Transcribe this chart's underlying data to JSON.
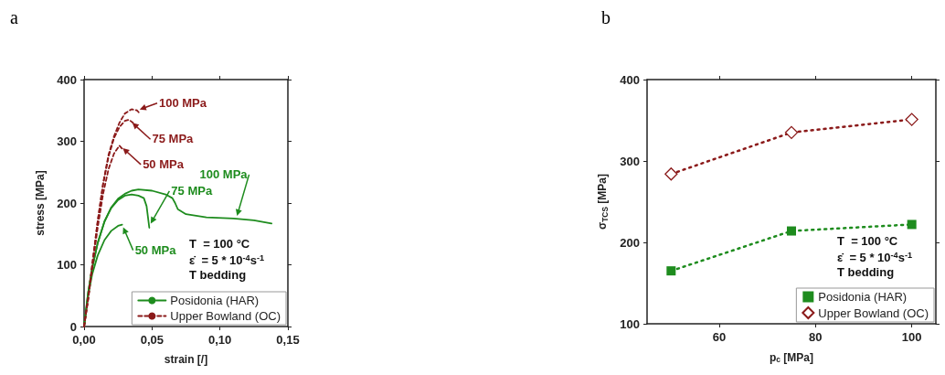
{
  "chart_data": [
    {
      "type": "line",
      "title": "a",
      "xlabel": "strain [/]",
      "ylabel": "stress [MPa]",
      "xlim": [
        0,
        0.15
      ],
      "xticks": [
        {
          "value": 0,
          "label": "0,00"
        },
        {
          "value": 0.05,
          "label": "0,05"
        },
        {
          "value": 0.1,
          "label": "0,10"
        },
        {
          "value": 0.15,
          "label": "0,15"
        }
      ],
      "ylim": [
        0,
        400
      ],
      "yticks": [
        0,
        100,
        200,
        300,
        400
      ],
      "grid": false,
      "legend": "bottom right",
      "marker": "none",
      "series": [
        {
          "name": "Posidonia (HAR)",
          "color": "#1e8c1e",
          "line_style": "solid",
          "x": [
            0,
            0.003,
            0.006,
            0.01,
            0.015,
            0.02,
            0.025,
            0.028
          ],
          "values": [
            0,
            50,
            85,
            115,
            140,
            155,
            163,
            165
          ]
        },
        {
          "color": "#1e8c1e",
          "line_style": "solid",
          "x": [
            0,
            0.003,
            0.006,
            0.01,
            0.015,
            0.02,
            0.025,
            0.03,
            0.035,
            0.04,
            0.044,
            0.046,
            0.048
          ],
          "values": [
            0,
            55,
            95,
            135,
            170,
            192,
            205,
            212,
            214,
            212,
            208,
            195,
            160
          ]
        },
        {
          "color": "#1e8c1e",
          "line_style": "solid",
          "x": [
            0,
            0.003,
            0.006,
            0.01,
            0.015,
            0.02,
            0.025,
            0.03,
            0.035,
            0.04,
            0.05,
            0.06,
            0.065,
            0.067,
            0.069,
            0.075,
            0.09,
            0.11,
            0.125,
            0.138
          ],
          "values": [
            0,
            55,
            95,
            135,
            170,
            193,
            207,
            215,
            220,
            222,
            220,
            214,
            208,
            200,
            190,
            182,
            177,
            175,
            172,
            167
          ]
        },
        {
          "name": "Upper Bowland (OC)",
          "color": "#8b1a1a",
          "line_style": "dashed",
          "x": [
            0,
            0.003,
            0.006,
            0.01,
            0.014,
            0.018,
            0.022,
            0.026,
            0.028
          ],
          "values": [
            0,
            45,
            95,
            160,
            215,
            255,
            280,
            293,
            288
          ]
        },
        {
          "color": "#8b1a1a",
          "line_style": "dashed",
          "x": [
            0,
            0.003,
            0.006,
            0.01,
            0.014,
            0.018,
            0.022,
            0.026,
            0.03,
            0.033,
            0.036
          ],
          "values": [
            0,
            45,
            100,
            170,
            230,
            275,
            305,
            323,
            333,
            335,
            330
          ]
        },
        {
          "color": "#8b1a1a",
          "line_style": "dashed",
          "x": [
            0,
            0.003,
            0.006,
            0.01,
            0.014,
            0.018,
            0.022,
            0.026,
            0.03,
            0.035,
            0.039,
            0.041
          ],
          "values": [
            0,
            45,
            100,
            170,
            232,
            278,
            308,
            330,
            345,
            352,
            350,
            345
          ]
        }
      ],
      "annotations": [
        {
          "text": "100 MPa",
          "x": 0.039,
          "y": 350
        },
        {
          "text": "75 MPa",
          "x": 0.034,
          "y": 333
        },
        {
          "text": "50 MPa",
          "x": 0.027,
          "y": 292
        },
        {
          "text": "50 MPa",
          "x": 0.028,
          "y": 165
        },
        {
          "text": "75 MPa",
          "x": 0.048,
          "y": 163
        },
        {
          "text": "100 MPa",
          "x": 0.112,
          "y": 175
        },
        "T  = 100 °C",
        "ε̇  = 5 * 10$^{-4}$s$^{-1}$",
        "T bedding"
      ]
    },
    {
      "type": "line",
      "title": "b",
      "xlabel": "p$_{c}$ [MPa]",
      "ylabel": "σ$_{TCS}$ [MPa]",
      "xlim": [
        45,
        105
      ],
      "xticks": [
        60,
        80,
        100
      ],
      "ylim": [
        100,
        400
      ],
      "yticks": [
        100,
        200,
        300,
        400
      ],
      "grid": false,
      "legend": "bottom right",
      "series": [
        {
          "name": "Posidonia (HAR)",
          "color": "#1e8c1e",
          "marker": "square",
          "line_style": "dotted",
          "x": [
            50,
            75,
            100
          ],
          "values": [
            165,
            214,
            222
          ]
        },
        {
          "name": "Upper Bowland (OC)",
          "color": "#8b1a1a",
          "marker": "diamond",
          "line_style": "dotted",
          "x": [
            50,
            75,
            100
          ],
          "values": [
            284,
            335,
            351
          ]
        }
      ],
      "annotations": [
        "T  = 100 °C",
        "ε̇  = 5 * 10$^{-4}$s$^{-1}$",
        "T bedding"
      ]
    }
  ]
}
